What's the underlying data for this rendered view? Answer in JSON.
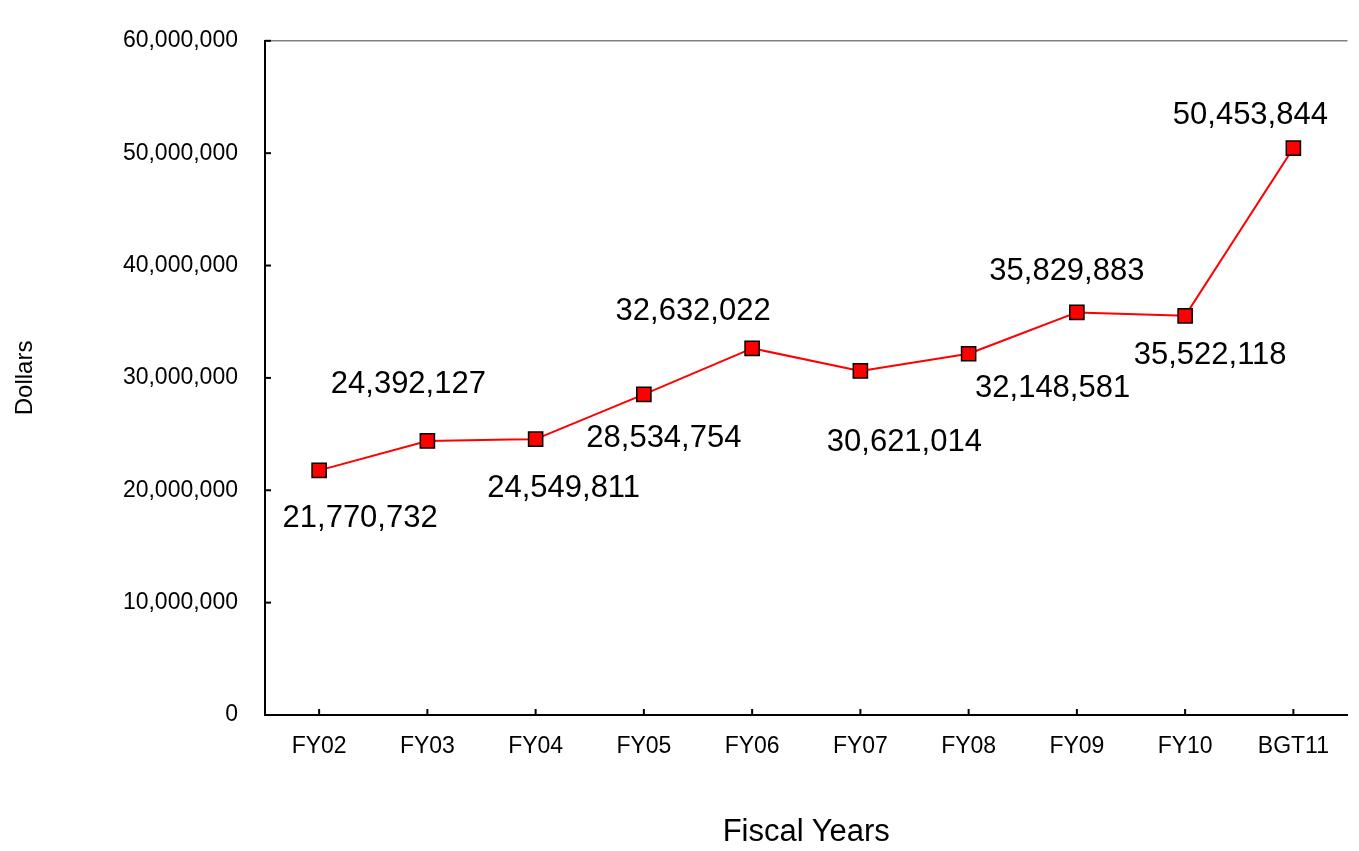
{
  "chart_data": {
    "type": "line",
    "xlabel": "Fiscal Years",
    "ylabel": "Dollars",
    "categories": [
      "FY02",
      "FY03",
      "FY04",
      "FY05",
      "FY06",
      "FY07",
      "FY08",
      "FY09",
      "FY10",
      "BGT11"
    ],
    "series": [
      {
        "color": "#ff0000",
        "values": [
          21770732,
          24392127,
          24549811,
          28534754,
          32632022,
          30621014,
          32148581,
          35829883,
          35522118,
          50453844
        ],
        "value_labels": [
          "21,770,732",
          "24,392,127",
          "24,549,811",
          "28,534,754",
          "32,632,022",
          "30,621,014",
          "32,148,581",
          "35,829,883",
          "35,522,118",
          "50,453,844"
        ]
      }
    ],
    "ylim": [
      0,
      60000000
    ],
    "yticks": [
      0,
      {
        "value": 10000000,
        "label": "10,000,000"
      },
      {
        "value": 20000000,
        "label": "20,000,000"
      },
      {
        "value": 30000000,
        "label": "30,000,000"
      },
      {
        "value": 40000000,
        "label": "40,000,000"
      },
      {
        "value": 50000000,
        "label": "50,000,000"
      },
      {
        "value": 60000000,
        "label": "60,000,000"
      }
    ],
    "marker": "square",
    "line_style": "solid"
  }
}
